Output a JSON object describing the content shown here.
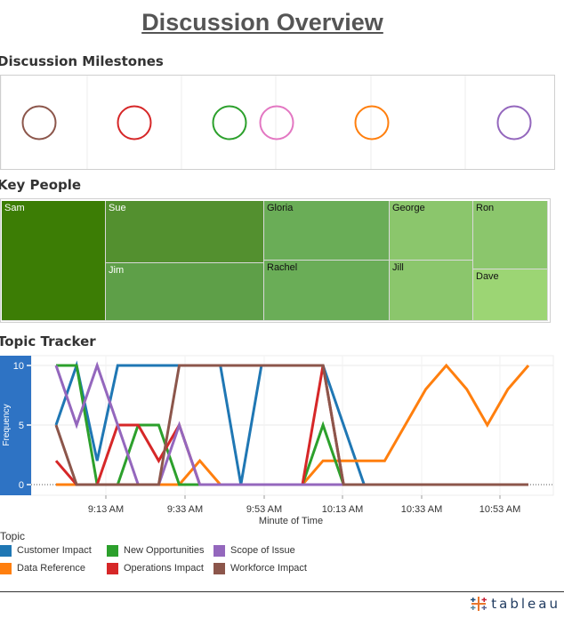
{
  "page": {
    "title": "Discussion Overview"
  },
  "sections": {
    "milestones": "Discussion Milestones",
    "people": "Key People",
    "topics": "Topic Tracker"
  },
  "milestones": [
    {
      "color": "#8c564b"
    },
    {
      "color": "#d62728"
    },
    {
      "color": "#2ca02c"
    },
    {
      "color": "#e377c2"
    },
    {
      "color": "#ff7f0e"
    },
    {
      "color": "#9467bd"
    }
  ],
  "key_people": [
    {
      "name": "Sam",
      "color": "#3c7d05"
    },
    {
      "name": "Sue",
      "color": "#53902f"
    },
    {
      "name": "Jim",
      "color": "#5e9f48"
    },
    {
      "name": "Gloria",
      "color": "#6aad57"
    },
    {
      "name": "Rachel",
      "color": "#6aad57"
    },
    {
      "name": "George",
      "color": "#8bc66c"
    },
    {
      "name": "Jill",
      "color": "#8bc66c"
    },
    {
      "name": "Ron",
      "color": "#8bc66c"
    },
    {
      "name": "Dave",
      "color": "#9cd574"
    }
  ],
  "chart_data": {
    "type": "line",
    "xlabel": "Minute of Time",
    "ylabel": "Frequency",
    "x_ticks": [
      "9:13 AM",
      "9:33 AM",
      "9:53 AM",
      "10:13 AM",
      "10:33 AM",
      "10:53 AM"
    ],
    "x": [
      "9:06 AM",
      "9:11 AM",
      "9:16 AM",
      "9:21 AM",
      "9:26 AM",
      "9:31 AM",
      "9:36 AM",
      "9:41 AM",
      "9:46 AM",
      "9:51 AM",
      "9:56 AM",
      "10:01 AM",
      "10:06 AM",
      "10:11 AM",
      "10:16 AM",
      "10:21 AM",
      "10:26 AM",
      "10:31 AM",
      "10:36 AM",
      "10:41 AM",
      "10:46 AM",
      "10:51 AM",
      "10:56 AM",
      "11:01 AM"
    ],
    "y_ticks": [
      0,
      5,
      10
    ],
    "ylim": [
      0,
      10
    ],
    "legend_title": "Topic",
    "series": [
      {
        "name": "Customer Impact",
        "color": "#1f77b4",
        "values": [
          5,
          10,
          2,
          10,
          10,
          10,
          10,
          10,
          10,
          0,
          10,
          10,
          10,
          10,
          5,
          0,
          0,
          0,
          0,
          0,
          0,
          0,
          0,
          0
        ]
      },
      {
        "name": "Data Reference",
        "color": "#ff7f0e",
        "values": [
          0,
          0,
          0,
          0,
          0,
          0,
          0,
          2,
          0,
          0,
          0,
          0,
          0,
          2,
          2,
          2,
          2,
          5,
          8,
          10,
          8,
          5,
          8,
          10
        ]
      },
      {
        "name": "New Opportunities",
        "color": "#2ca02c",
        "values": [
          10,
          10,
          0,
          0,
          5,
          5,
          0,
          0,
          0,
          0,
          0,
          0,
          0,
          5,
          0,
          0,
          0,
          0,
          0,
          0,
          0,
          0,
          0,
          0
        ]
      },
      {
        "name": "Operations Impact",
        "color": "#d62728",
        "values": [
          2,
          0,
          0,
          5,
          5,
          2,
          5,
          0,
          0,
          0,
          0,
          0,
          0,
          10,
          0,
          0,
          0,
          0,
          0,
          0,
          0,
          0,
          0,
          0
        ]
      },
      {
        "name": "Scope of Issue",
        "color": "#9467bd",
        "values": [
          10,
          5,
          10,
          5,
          0,
          0,
          5,
          0,
          0,
          0,
          0,
          0,
          0,
          0,
          0,
          0,
          0,
          0,
          0,
          0,
          0,
          0,
          0,
          0
        ]
      },
      {
        "name": "Workforce Impact",
        "color": "#8c564b",
        "values": [
          5,
          0,
          0,
          0,
          0,
          0,
          10,
          10,
          10,
          10,
          10,
          10,
          10,
          10,
          0,
          0,
          0,
          0,
          0,
          0,
          0,
          0,
          0,
          0
        ]
      }
    ]
  },
  "footer": {
    "brand": "tableau"
  }
}
